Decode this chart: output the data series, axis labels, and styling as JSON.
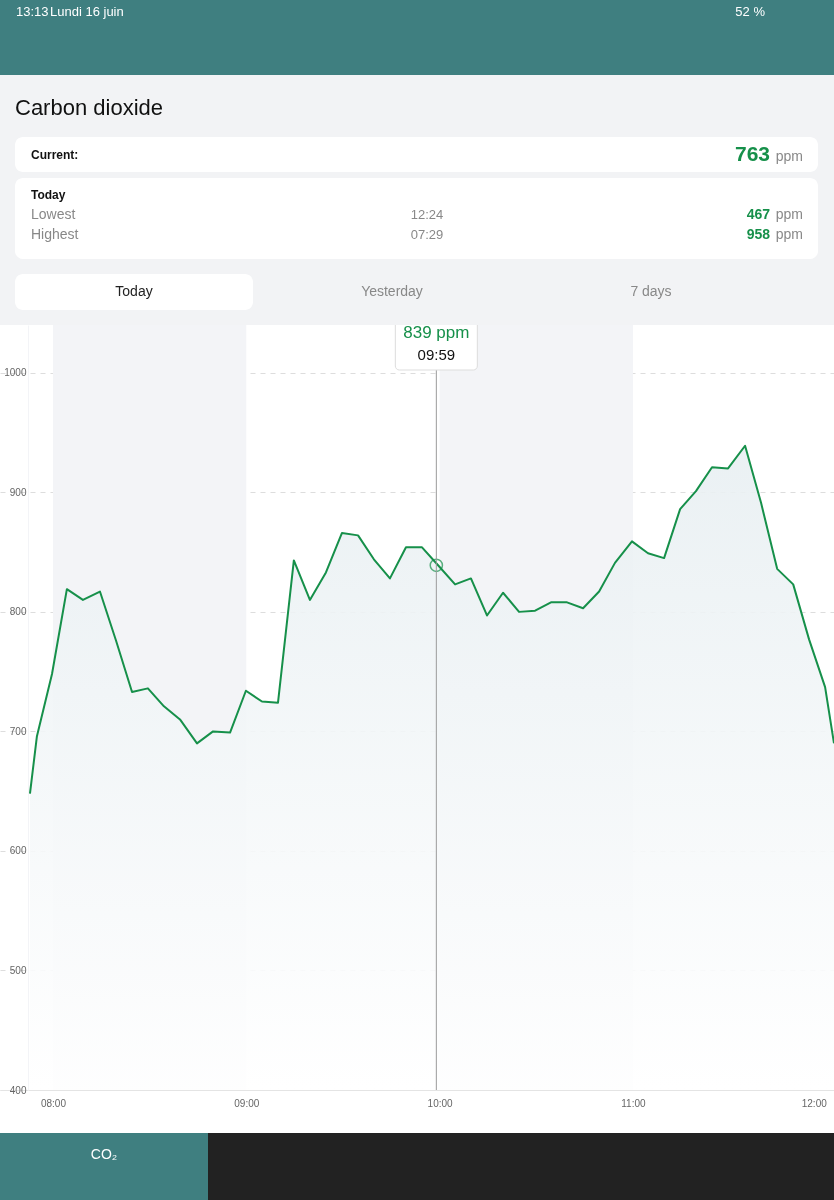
{
  "chart_data": {
    "type": "area",
    "title": "Carbon dioxide",
    "series": [
      {
        "color": "#16904a",
        "x": [
          7.881,
          7.917,
          7.995,
          8.072,
          8.155,
          8.243,
          8.326,
          8.409,
          8.491,
          8.574,
          8.657,
          8.745,
          8.828,
          8.916,
          8.998,
          9.081,
          9.164,
          9.246,
          9.329,
          9.412,
          9.495,
          9.578,
          9.66,
          9.743,
          9.826,
          9.909,
          9.992,
          10.08,
          10.162,
          10.245,
          10.328,
          10.411,
          10.494,
          10.576,
          10.659,
          10.742,
          10.825,
          10.907,
          10.995,
          11.078,
          11.161,
          11.244,
          11.326,
          11.409,
          11.492,
          11.58,
          11.663,
          11.746,
          11.829,
          11.911,
          11.994,
          12.04
        ],
        "values": [
          648,
          696,
          748,
          819,
          810,
          817,
          776,
          733,
          736,
          721,
          710,
          690,
          700,
          699,
          734,
          725,
          724,
          843,
          810,
          833,
          866,
          864,
          844,
          828,
          854,
          854,
          839,
          823,
          828,
          797,
          816,
          800,
          801,
          808,
          808,
          803,
          817,
          841,
          859,
          849,
          845,
          886,
          901,
          921,
          920,
          939,
          891,
          836,
          823,
          777,
          737,
          690
        ]
      },
      {
        "type": "scatter",
        "color": "#16904a",
        "marker": "circle",
        "x": [
          9.983
        ],
        "values": [
          839
        ]
      }
    ],
    "xlim": [
      7.726,
      12.04
    ],
    "ylim": [
      400,
      1040
    ],
    "xticks": [
      {
        "value": 8,
        "label": "08:00"
      },
      {
        "value": 9,
        "label": "09:00"
      },
      {
        "value": 10,
        "label": "10:00"
      },
      {
        "value": 11,
        "label": "11:00"
      },
      {
        "value": 12,
        "label": "12:00"
      }
    ],
    "yticks": [
      400,
      500,
      600,
      700,
      800,
      900,
      1000
    ],
    "grid": "y",
    "marker": "none",
    "line_style": "solid",
    "bands": [
      {
        "axis": "x",
        "from": 8,
        "to": 9,
        "color": "#f3f4f7"
      },
      {
        "axis": "x",
        "from": 10,
        "to": 11,
        "color": "#f3f4f7"
      }
    ],
    "ref_lines": [
      {
        "axis": "x",
        "value": 9.983,
        "color": "#9a9a9a"
      }
    ],
    "annotations": [
      "13:13",
      "Lundi 16 juin",
      "52 %",
      "Current:",
      "763",
      "ppm",
      "Today",
      "Lowest",
      "12:24",
      "467",
      "ppm",
      "Highest",
      "07:29",
      "958",
      "ppm",
      "Today",
      "Yesterday",
      "7 days",
      "CO₂",
      "839 ppm",
      "09:59"
    ]
  }
}
